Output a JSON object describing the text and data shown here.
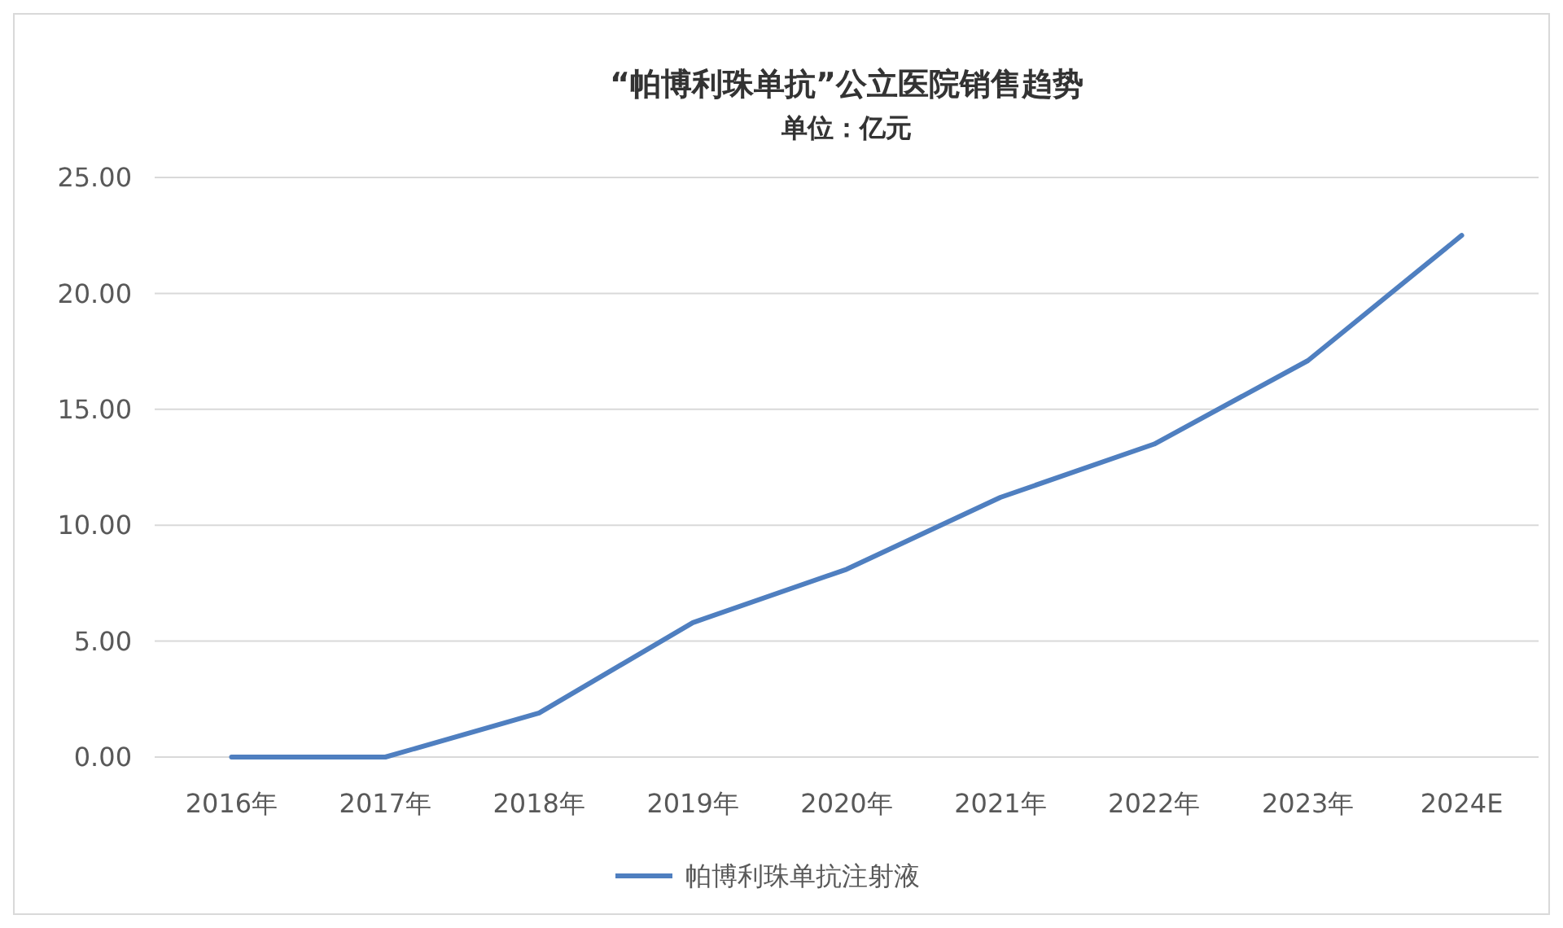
{
  "chart_data": {
    "type": "line",
    "title": "“帕博利珠单抗”公立医院销售趋势",
    "subtitle": "单位：亿元",
    "categories": [
      "2016年",
      "2017年",
      "2018年",
      "2019年",
      "2020年",
      "2021年",
      "2022年",
      "2023年",
      "2024E"
    ],
    "series": [
      {
        "name": "帕博利珠单抗注射液",
        "color": "#4f7fc0",
        "values": [
          0,
          0,
          1.9,
          5.8,
          8.1,
          11.2,
          13.5,
          17.1,
          22.5
        ]
      }
    ],
    "ylim": [
      0,
      25
    ],
    "yticks": [
      {
        "value": 0,
        "label": "0.00"
      },
      {
        "value": 5,
        "label": "5.00"
      },
      {
        "value": 10,
        "label": "10.00"
      },
      {
        "value": 15,
        "label": "15.00"
      },
      {
        "value": 20,
        "label": "20.00"
      },
      {
        "value": 25,
        "label": "25.00"
      }
    ],
    "grid": "y",
    "legend": "bottom",
    "marker": "none",
    "line_style": "solid"
  }
}
